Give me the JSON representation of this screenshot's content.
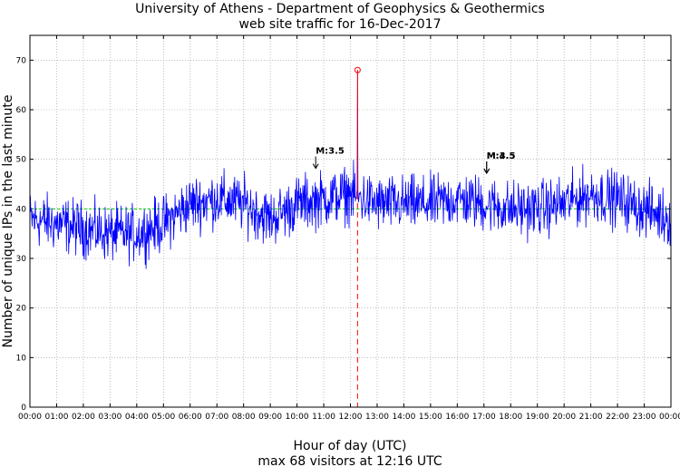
{
  "chart_data": {
    "type": "line",
    "title": "University of Athens - Department of Geophysics & Geothermics",
    "subtitle": "web site traffic for 16-Dec-2017",
    "xlabel": "Hour of day (UTC)",
    "xlabel2": "max 68 visitors at 12:16 UTC",
    "ylabel": "Number of unique IPs in the last minute",
    "xlim": [
      0,
      24
    ],
    "ylim": [
      0,
      75
    ],
    "x_tick_labels": [
      "00:00",
      "01:00",
      "02:00",
      "03:00",
      "04:00",
      "05:00",
      "06:00",
      "07:00",
      "08:00",
      "09:00",
      "10:00",
      "11:00",
      "12:00",
      "13:00",
      "14:00",
      "15:00",
      "16:00",
      "17:00",
      "18:00",
      "19:00",
      "20:00",
      "21:00",
      "22:00",
      "23:00",
      "00:00"
    ],
    "y_ticks": [
      0,
      10,
      20,
      30,
      40,
      50,
      60,
      70
    ],
    "grid": true,
    "mean_line": 40,
    "max_point": {
      "x": 12.267,
      "y": 68
    },
    "series": [
      {
        "color": "#0000ff",
        "hourly_levels": [
          {
            "hour": 0,
            "value": 38
          },
          {
            "hour": 1,
            "value": 37
          },
          {
            "hour": 2,
            "value": 36
          },
          {
            "hour": 3,
            "value": 35
          },
          {
            "hour": 4,
            "value": 35
          },
          {
            "hour": 5,
            "value": 37
          },
          {
            "hour": 6,
            "value": 41
          },
          {
            "hour": 7,
            "value": 42
          },
          {
            "hour": 8,
            "value": 41
          },
          {
            "hour": 9,
            "value": 38
          },
          {
            "hour": 10,
            "value": 41
          },
          {
            "hour": 11,
            "value": 42
          },
          {
            "hour": 12,
            "value": 43
          },
          {
            "hour": 13,
            "value": 41
          },
          {
            "hour": 14,
            "value": 41
          },
          {
            "hour": 15,
            "value": 41
          },
          {
            "hour": 16,
            "value": 42
          },
          {
            "hour": 17,
            "value": 41
          },
          {
            "hour": 18,
            "value": 40
          },
          {
            "hour": 19,
            "value": 40
          },
          {
            "hour": 20,
            "value": 41
          },
          {
            "hour": 21,
            "value": 43
          },
          {
            "hour": 22,
            "value": 42
          },
          {
            "hour": 23,
            "value": 40
          },
          {
            "hour": 24,
            "value": 38
          }
        ]
      }
    ],
    "annotations": [
      {
        "label": "M:3.5",
        "x": 10.7,
        "y": 48
      },
      {
        "label": "M:3.5",
        "x": 17.1,
        "y": 47
      },
      {
        "label": "M:4.5",
        "x": 17.1,
        "y": 47
      }
    ]
  }
}
